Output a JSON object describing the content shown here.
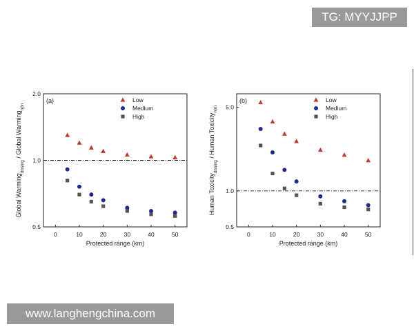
{
  "watermark_top": "TG: MYYJJPP",
  "watermark_bottom": "www.langhengchina.com",
  "chart_data": [
    {
      "panel": "(a)",
      "type": "scatter",
      "xlabel": "Protected range (km)",
      "ylabel_main": "Global Warming",
      "ylabel_sub1": "dosing",
      "ylabel_mid": " / Global Warming",
      "ylabel_sub2": "non",
      "x_ticks": [
        0,
        10,
        20,
        30,
        40,
        50
      ],
      "xlim": [
        -5,
        55
      ],
      "y_scale": "log",
      "ylim": [
        0.5,
        2.0
      ],
      "y_ticks": [
        "0.5",
        "1.0",
        "2.0"
      ],
      "y_tick_values": [
        0.5,
        1.0,
        2.0
      ],
      "reference_line": 1.0,
      "legend": "top-right",
      "x": [
        5,
        10,
        15,
        20,
        30,
        40,
        50
      ],
      "series": [
        {
          "name": "Low",
          "marker": "triangle",
          "color": "#c0392b",
          "values": [
            1.3,
            1.2,
            1.14,
            1.1,
            1.06,
            1.04,
            1.03
          ]
        },
        {
          "name": "Medium",
          "marker": "circle",
          "color": "#1f2a8f",
          "values": [
            0.91,
            0.76,
            0.7,
            0.66,
            0.61,
            0.59,
            0.58
          ]
        },
        {
          "name": "High",
          "marker": "square",
          "color": "#555555",
          "values": [
            0.81,
            0.7,
            0.65,
            0.62,
            0.59,
            0.57,
            0.56
          ]
        }
      ]
    },
    {
      "panel": "(b)",
      "type": "scatter",
      "xlabel": "Protected range (km)",
      "ylabel_main": "Human Toxicity",
      "ylabel_sub1": "dosing",
      "ylabel_mid": " / Human Toxicity",
      "ylabel_sub2": "non",
      "x_ticks": [
        0,
        10,
        20,
        30,
        40,
        50
      ],
      "xlim": [
        -5,
        55
      ],
      "y_scale": "log",
      "ylim": [
        0.5,
        6.5
      ],
      "y_ticks": [
        "0.5",
        "1.0",
        "5.0"
      ],
      "y_tick_values": [
        0.5,
        1.0,
        5.0
      ],
      "reference_line": 1.0,
      "legend": "top-right",
      "x": [
        5,
        10,
        15,
        20,
        30,
        40,
        50
      ],
      "series": [
        {
          "name": "Low",
          "marker": "triangle",
          "color": "#c0392b",
          "values": [
            5.5,
            3.8,
            3.0,
            2.6,
            2.2,
            2.0,
            1.8
          ]
        },
        {
          "name": "Medium",
          "marker": "circle",
          "color": "#1f2a8f",
          "values": [
            3.3,
            2.1,
            1.5,
            1.2,
            0.9,
            0.82,
            0.76
          ]
        },
        {
          "name": "High",
          "marker": "square",
          "color": "#555555",
          "values": [
            2.4,
            1.4,
            1.05,
            0.92,
            0.78,
            0.73,
            0.7
          ]
        }
      ]
    }
  ]
}
